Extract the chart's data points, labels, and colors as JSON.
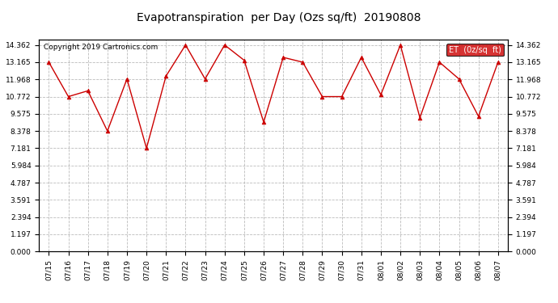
{
  "title": "Evapotranspiration  per Day (Ozs sq/ft)  20190808",
  "copyright": "Copyright 2019 Cartronics.com",
  "legend_label": "ET  (0z/sq  ft)",
  "x_labels": [
    "07/15",
    "07/16",
    "07/17",
    "07/18",
    "07/19",
    "07/20",
    "07/21",
    "07/22",
    "07/23",
    "07/24",
    "07/25",
    "07/26",
    "07/27",
    "07/28",
    "07/29",
    "07/30",
    "07/31",
    "08/01",
    "08/02",
    "08/03",
    "08/04",
    "08/05",
    "08/06",
    "08/07"
  ],
  "y_values": [
    13.165,
    10.772,
    11.175,
    8.378,
    12.0,
    7.181,
    12.2,
    14.362,
    12.0,
    14.362,
    13.3,
    9.0,
    13.5,
    13.165,
    10.772,
    10.772,
    13.5,
    10.9,
    14.362,
    9.3,
    13.165,
    12.0,
    9.4,
    13.165
  ],
  "y_ticks": [
    0.0,
    1.197,
    2.394,
    3.591,
    4.787,
    5.984,
    7.181,
    8.378,
    9.575,
    10.772,
    11.968,
    13.165,
    14.362
  ],
  "line_color": "#cc0000",
  "marker_color": "#cc0000",
  "background_color": "#ffffff",
  "grid_color": "#aaaaaa",
  "title_fontsize": 10,
  "copyright_fontsize": 6.5,
  "tick_fontsize": 6.5,
  "legend_fontsize": 7,
  "legend_bg": "#cc0000",
  "legend_text_color": "#ffffff",
  "ylim_max": 14.75
}
